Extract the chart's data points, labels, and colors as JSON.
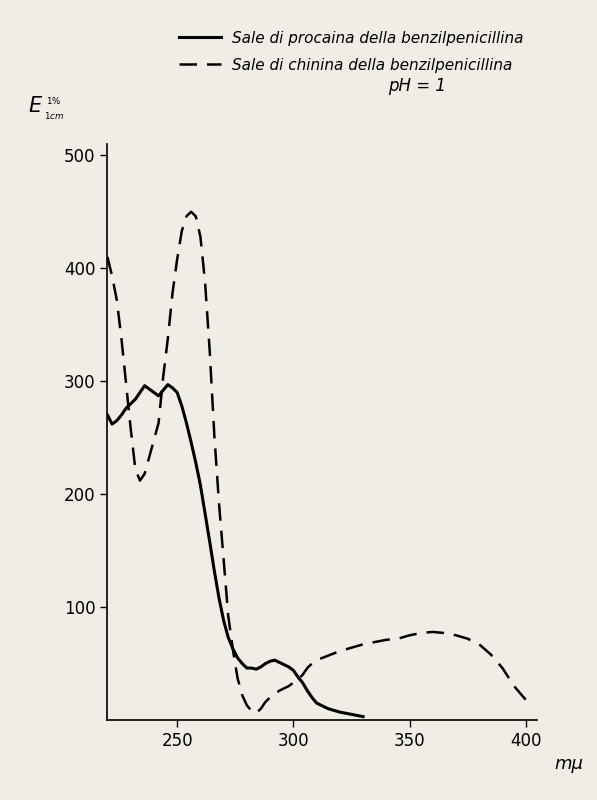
{
  "xlabel": "mμ",
  "xlim": [
    220,
    405
  ],
  "ylim": [
    0,
    510
  ],
  "xticks": [
    250,
    300,
    350,
    400
  ],
  "yticks": [
    100,
    200,
    300,
    400,
    500
  ],
  "background_color": "#f0ede6",
  "plot_bg": "#f0ede6",
  "legend_solid": "Sale di procaina della benzilpenicillina",
  "legend_dashed": "Sale di chinina della benzilpenicillina",
  "legend_ph": "pH = 1",
  "solid_x": [
    220,
    222,
    224,
    226,
    228,
    230,
    232,
    234,
    236,
    238,
    240,
    242,
    244,
    246,
    248,
    250,
    252,
    254,
    256,
    258,
    260,
    262,
    264,
    266,
    268,
    270,
    272,
    274,
    276,
    278,
    280,
    282,
    284,
    286,
    288,
    290,
    292,
    294,
    296,
    298,
    300,
    302,
    304,
    306,
    308,
    310,
    315,
    320,
    325,
    330
  ],
  "solid_y": [
    270,
    262,
    265,
    270,
    276,
    280,
    284,
    290,
    296,
    293,
    290,
    287,
    292,
    297,
    294,
    290,
    278,
    263,
    246,
    228,
    208,
    183,
    158,
    132,
    108,
    88,
    73,
    63,
    55,
    50,
    46,
    46,
    45,
    47,
    50,
    52,
    53,
    51,
    49,
    47,
    44,
    38,
    33,
    26,
    20,
    15,
    10,
    7,
    5,
    3
  ],
  "dashed_x": [
    220,
    222,
    224,
    226,
    228,
    230,
    232,
    234,
    236,
    238,
    240,
    242,
    244,
    246,
    248,
    250,
    252,
    254,
    256,
    258,
    260,
    262,
    264,
    266,
    268,
    270,
    272,
    274,
    276,
    278,
    280,
    282,
    284,
    286,
    288,
    290,
    292,
    294,
    296,
    298,
    300,
    302,
    304,
    306,
    308,
    310,
    315,
    320,
    325,
    330,
    335,
    340,
    345,
    350,
    355,
    360,
    365,
    370,
    375,
    380,
    385,
    390,
    395,
    400
  ],
  "dashed_y": [
    410,
    393,
    372,
    338,
    298,
    258,
    222,
    212,
    218,
    233,
    248,
    263,
    304,
    338,
    378,
    408,
    433,
    446,
    450,
    446,
    428,
    388,
    327,
    252,
    192,
    142,
    92,
    62,
    37,
    22,
    13,
    8,
    6,
    10,
    16,
    20,
    23,
    26,
    28,
    30,
    33,
    36,
    40,
    46,
    50,
    53,
    57,
    61,
    64,
    67,
    69,
    71,
    72,
    75,
    77,
    78,
    77,
    75,
    72,
    67,
    58,
    46,
    30,
    18
  ]
}
